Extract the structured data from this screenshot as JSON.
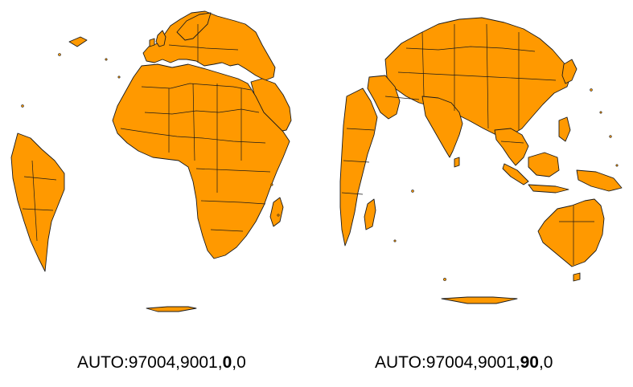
{
  "colors": {
    "land": "#ff9900",
    "ocean": "#ffffff",
    "border": "#1a1a1a",
    "text": "#000000"
  },
  "maps": [
    {
      "caption_prefix": "AUTO:97004,9001,",
      "caption_bold": "0",
      "caption_suffix": ",0"
    },
    {
      "caption_prefix": "AUTO:97004,9001,",
      "caption_bold": "90",
      "caption_suffix": ",0"
    }
  ]
}
